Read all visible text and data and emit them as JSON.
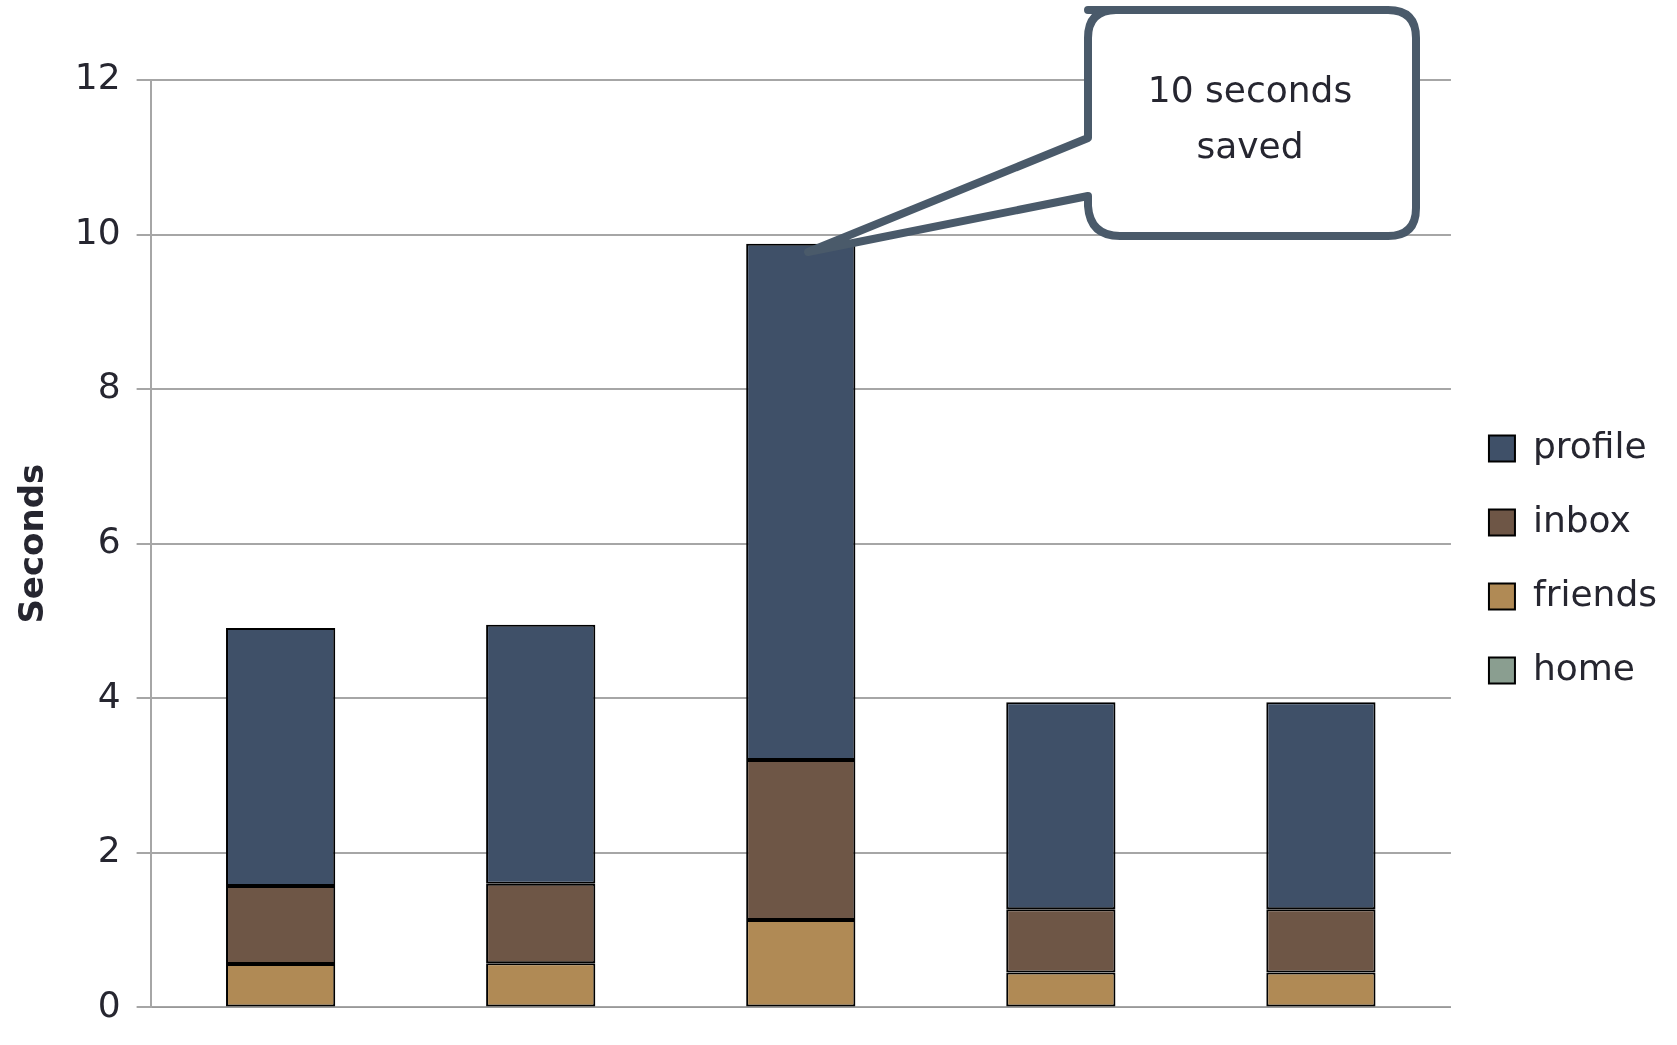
{
  "chart_data": {
    "type": "bar",
    "stacked": true,
    "ylabel": "Seconds",
    "categories": [
      null,
      null,
      null,
      null,
      null
    ],
    "series": [
      {
        "name": "home",
        "color": "#8a9e90",
        "values": [
          0,
          0,
          0,
          0,
          0
        ]
      },
      {
        "name": "friends",
        "color": "#b08a55",
        "values": [
          0.56,
          0.57,
          1.13,
          0.45,
          0.45
        ]
      },
      {
        "name": "inbox",
        "color": "#6e5646",
        "values": [
          1.01,
          1.03,
          2.07,
          0.82,
          0.82
        ]
      },
      {
        "name": "profile",
        "color": "#3f5068",
        "values": [
          3.34,
          3.35,
          6.68,
          2.68,
          2.68
        ]
      }
    ],
    "ylim": [
      0,
      12
    ],
    "yticks": [
      0,
      2,
      4,
      6,
      8,
      10,
      12
    ],
    "grid": "y",
    "legend": "right",
    "annotations": [
      "10 seconds saved"
    ]
  }
}
